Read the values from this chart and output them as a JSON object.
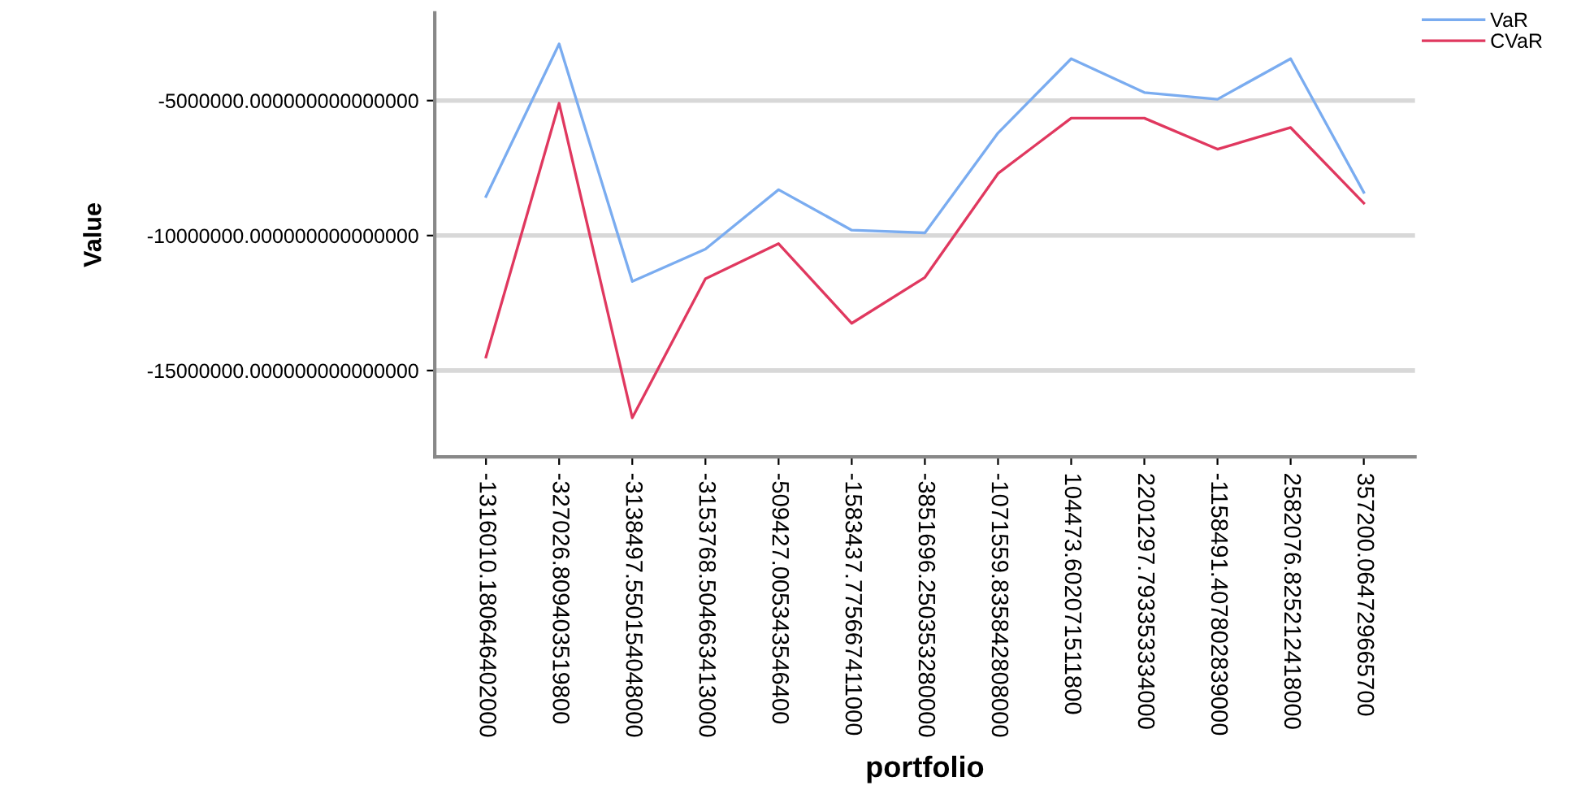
{
  "chart_data": {
    "type": "line",
    "xlabel": "portfolio",
    "ylabel": "Value",
    "categories": [
      "-1316010.180646402000",
      "-327026.809403519800",
      "-3138497.550154048000",
      "-3153768.504663413000",
      "-509427.005343546400",
      "-1583437.775667411000",
      "-3851696.250353280000",
      "-1071559.835842808000",
      "104473.602071511800",
      "2201297.793353334000",
      "-1158491.407802839000",
      "2582076.825212418000",
      "357200.064729665700"
    ],
    "series": [
      {
        "name": "VaR",
        "color": "#7aacf0",
        "values": [
          -8550000,
          -2900000,
          -11700000,
          -10500000,
          -8300000,
          -9800000,
          -9900000,
          -6200000,
          -3450000,
          -4700000,
          -4950000,
          -3450000,
          -8400000
        ]
      },
      {
        "name": "CVaR",
        "color": "#e0385f",
        "values": [
          -14500000,
          -5100000,
          -16750000,
          -11600000,
          -10300000,
          -13250000,
          -11550000,
          -7700000,
          -5650000,
          -5650000,
          -6800000,
          -6000000,
          -8800000
        ]
      }
    ],
    "ylim": [
      -18200000,
      -1750000
    ],
    "yticks": [
      {
        "value": -5000000,
        "label": "-5000000.000000000000000"
      },
      {
        "value": -10000000,
        "label": "-10000000.000000000000000"
      },
      {
        "value": -15000000,
        "label": "-15000000.000000000000000"
      }
    ],
    "grid": "y",
    "legend": "top right",
    "marker": "none",
    "line_style": "solid"
  }
}
